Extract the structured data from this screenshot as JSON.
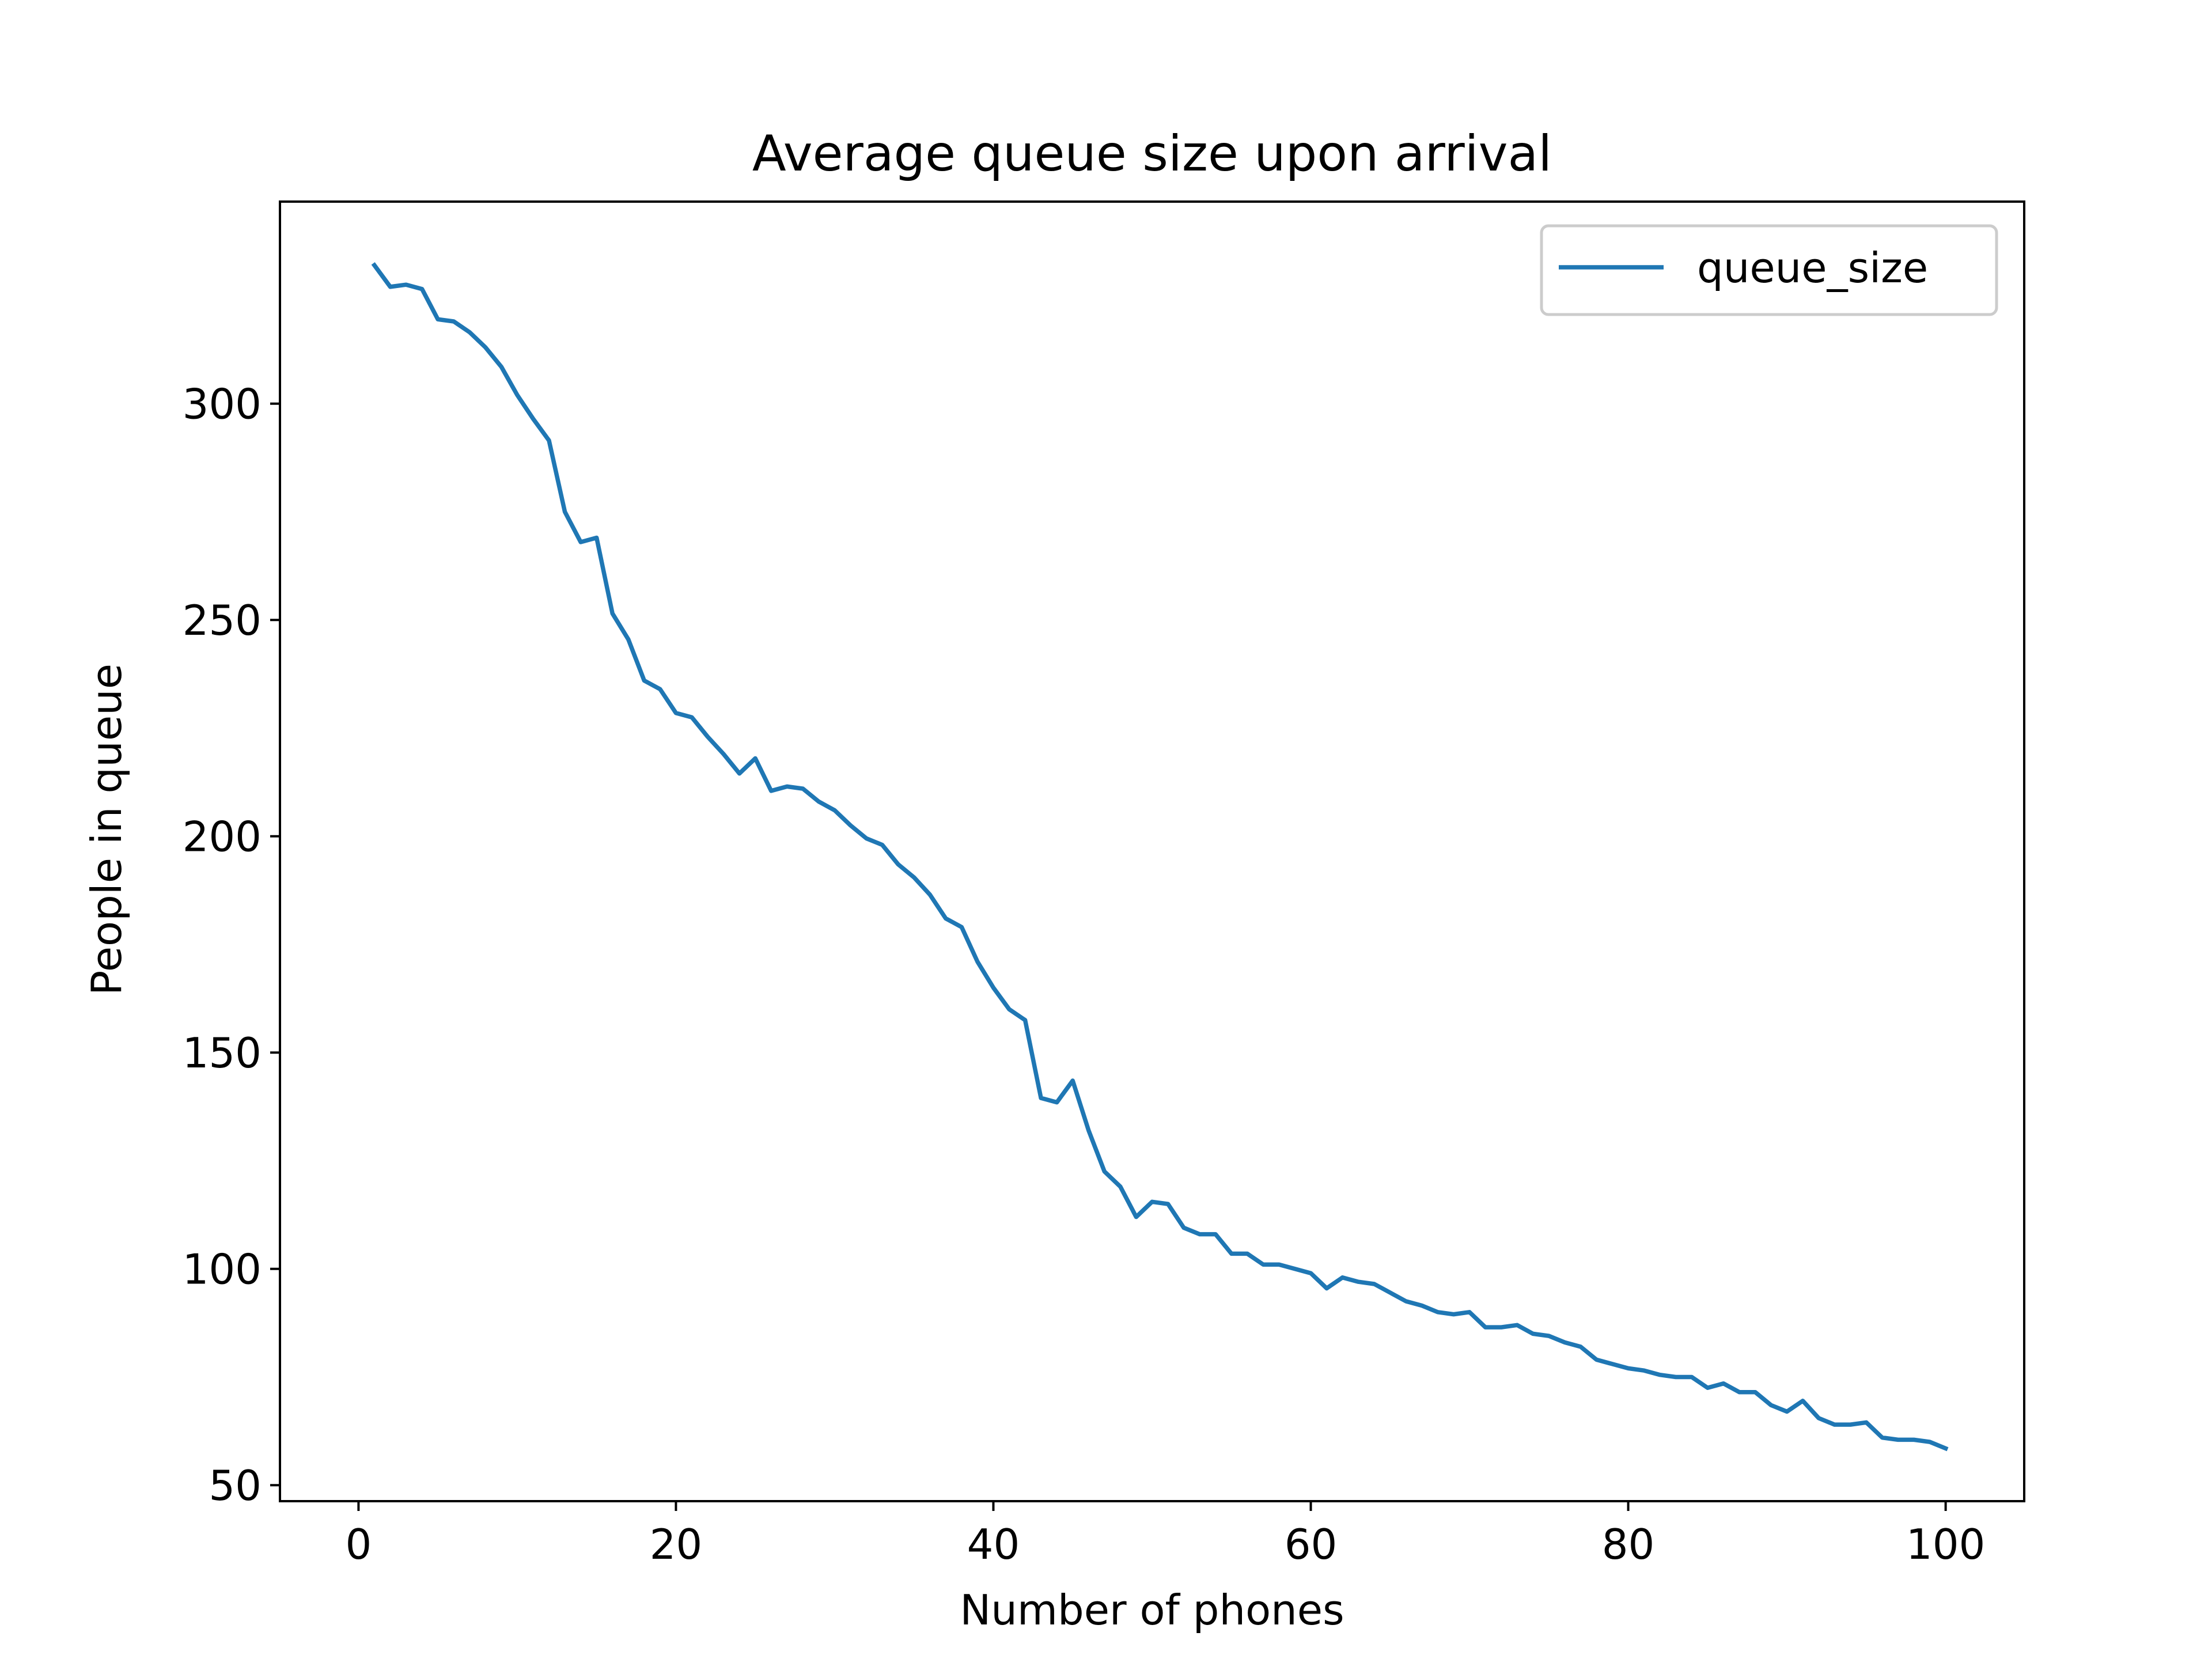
{
  "chart_data": {
    "type": "line",
    "title": "Average queue size upon arrival",
    "xlabel": "Number of phones",
    "ylabel": "People in queue",
    "xlim": [
      -4.95,
      104.95
    ],
    "ylim": [
      46.3,
      346.7
    ],
    "xticks": [
      0,
      20,
      40,
      60,
      80,
      100
    ],
    "yticks": [
      50,
      100,
      150,
      200,
      250,
      300
    ],
    "xtick_labels": [
      "0",
      "20",
      "40",
      "60",
      "80",
      "100"
    ],
    "ytick_labels": [
      "50",
      "100",
      "150",
      "200",
      "250",
      "300"
    ],
    "grid": false,
    "legend": {
      "position": "upper right"
    },
    "series": [
      {
        "name": "queue_size",
        "color": "#1f77b4",
        "x": [
          1,
          2,
          3,
          4,
          5,
          6,
          7,
          8,
          9,
          10,
          11,
          12,
          13,
          14,
          15,
          16,
          17,
          18,
          19,
          20,
          21,
          22,
          23,
          24,
          25,
          26,
          27,
          28,
          29,
          30,
          31,
          32,
          33,
          34,
          35,
          36,
          37,
          38,
          39,
          40,
          41,
          42,
          43,
          44,
          45,
          46,
          47,
          48,
          49,
          50,
          51,
          52,
          53,
          54,
          55,
          56,
          57,
          58,
          59,
          60,
          61,
          62,
          63,
          64,
          65,
          66,
          67,
          68,
          69,
          70,
          71,
          72,
          73,
          74,
          75,
          76,
          77,
          78,
          79,
          80,
          81,
          82,
          83,
          84,
          85,
          86,
          87,
          88,
          89,
          90,
          91,
          92,
          93,
          94,
          95,
          96,
          97,
          98,
          99,
          100
        ],
        "y": [
          332,
          327,
          327.5,
          326.5,
          319.5,
          319,
          316.5,
          313,
          308.5,
          302,
          296.5,
          291.5,
          275,
          268,
          269,
          251.5,
          245.5,
          236,
          234,
          228.5,
          227.5,
          223,
          219,
          214.5,
          218,
          210.5,
          211.5,
          211,
          208,
          206,
          202.5,
          199.5,
          198,
          193.5,
          190.5,
          186.5,
          181,
          179,
          171,
          165,
          160,
          157.5,
          139.5,
          138.5,
          143.5,
          132,
          122.5,
          119,
          112,
          115.5,
          115,
          109.5,
          108,
          108,
          103.5,
          103.5,
          101,
          101,
          100,
          99,
          95.5,
          98,
          97,
          96.5,
          94.5,
          92.5,
          91.5,
          90,
          89.5,
          90,
          86.5,
          86.5,
          87,
          85,
          84.5,
          83,
          82,
          79,
          78,
          77,
          76.5,
          75.5,
          75,
          75,
          72.5,
          73.5,
          71.5,
          71.5,
          68.5,
          67,
          69.5,
          65.5,
          64,
          64,
          64.5,
          61,
          60.5,
          60.5,
          60,
          58.5
        ]
      }
    ]
  }
}
